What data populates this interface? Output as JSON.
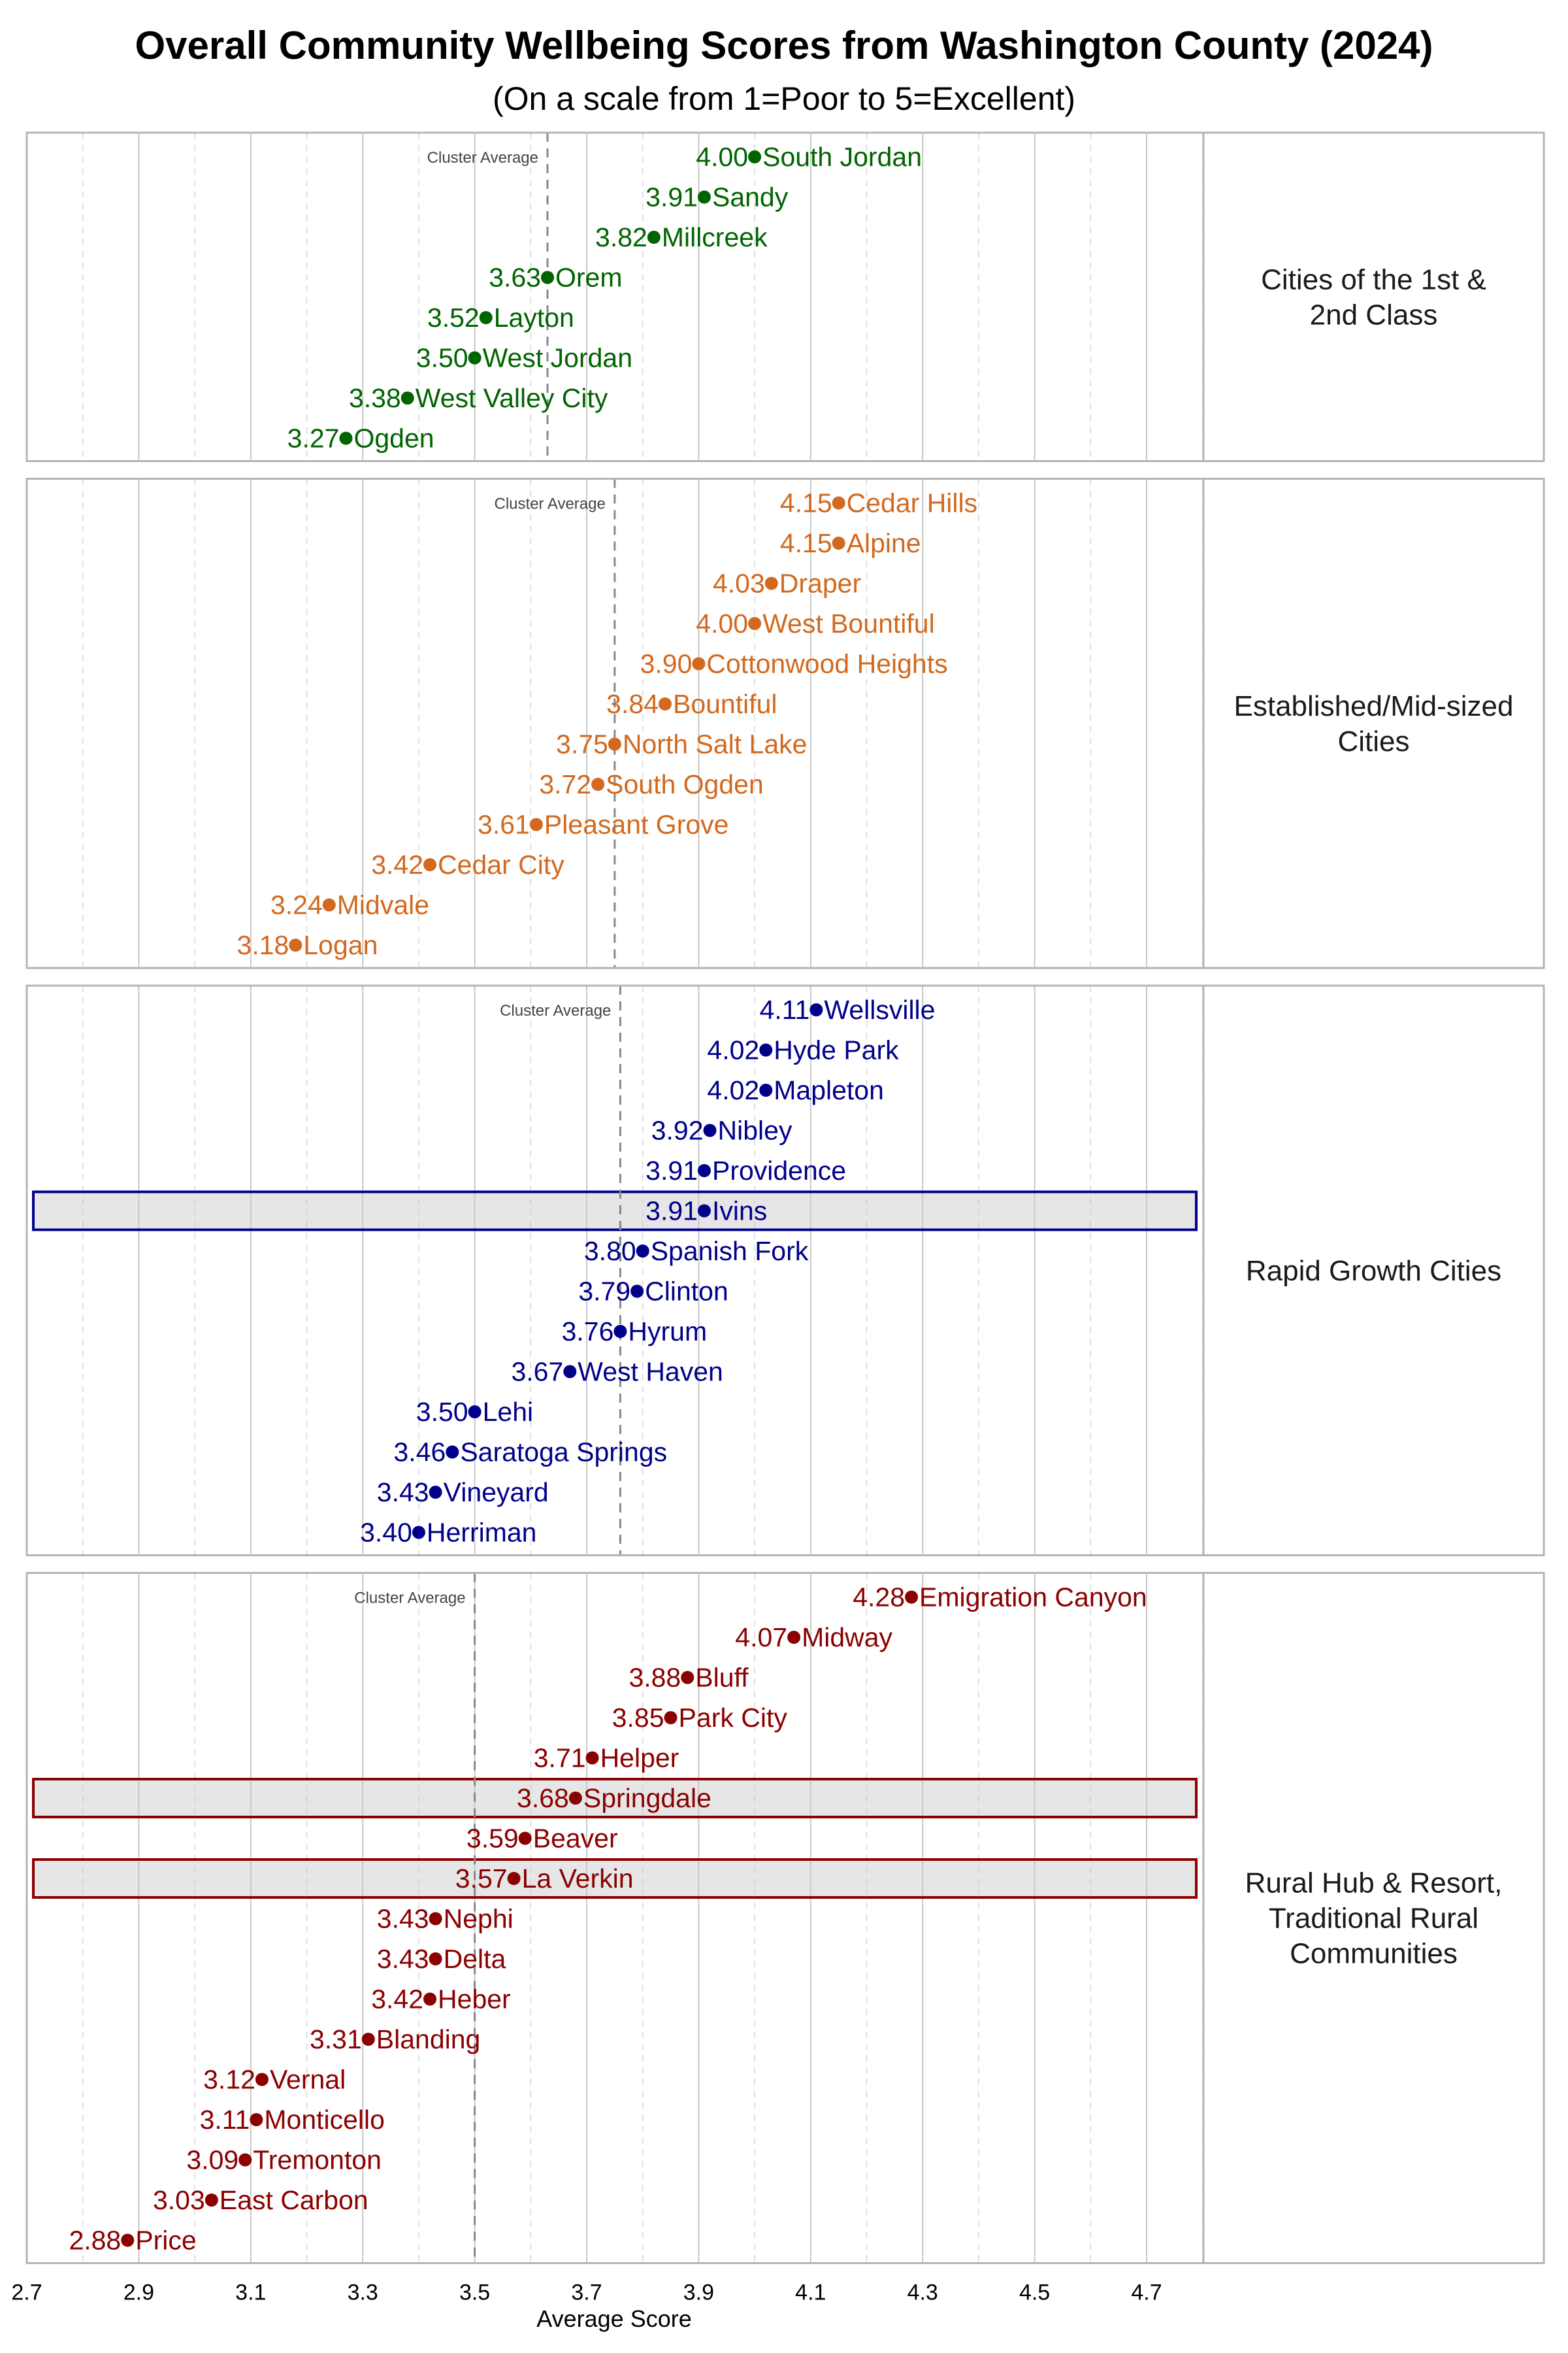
{
  "chart_data": {
    "type": "dot",
    "title": "Overall Community Wellbeing Scores from Washington County (2024)",
    "subtitle": "(On a scale from 1=Poor to 5=Excellent)",
    "xlabel": "Average Score",
    "xlim": [
      2.7,
      4.8
    ],
    "x_ticks": [
      "2.7",
      "2.9",
      "3.1",
      "3.3",
      "3.5",
      "3.7",
      "3.9",
      "4.1",
      "4.3",
      "4.5",
      "4.7"
    ],
    "grid": true,
    "cluster_average_label": "Cluster Average",
    "panels": [
      {
        "label_lines": [
          "Cities of the 1st &",
          "2nd Class"
        ],
        "color": "#006400",
        "cluster_average": 3.63,
        "points": [
          {
            "name": "South Jordan",
            "value": 4.0
          },
          {
            "name": "Sandy",
            "value": 3.91
          },
          {
            "name": "Millcreek",
            "value": 3.82
          },
          {
            "name": "Orem",
            "value": 3.63
          },
          {
            "name": "Layton",
            "value": 3.52
          },
          {
            "name": "West Jordan",
            "value": 3.5
          },
          {
            "name": "West Valley City",
            "value": 3.38
          },
          {
            "name": "Ogden",
            "value": 3.27
          }
        ]
      },
      {
        "label_lines": [
          "Established/Mid-sized",
          "Cities"
        ],
        "color": "#D2691E",
        "cluster_average": 3.75,
        "points": [
          {
            "name": "Cedar Hills",
            "value": 4.15
          },
          {
            "name": "Alpine",
            "value": 4.15
          },
          {
            "name": "Draper",
            "value": 4.03
          },
          {
            "name": "West Bountiful",
            "value": 4.0
          },
          {
            "name": "Cottonwood Heights",
            "value": 3.9
          },
          {
            "name": "Bountiful",
            "value": 3.84
          },
          {
            "name": "North Salt Lake",
            "value": 3.75
          },
          {
            "name": "South Ogden",
            "value": 3.72
          },
          {
            "name": "Pleasant Grove",
            "value": 3.61
          },
          {
            "name": "Cedar City",
            "value": 3.42
          },
          {
            "name": "Midvale",
            "value": 3.24
          },
          {
            "name": "Logan",
            "value": 3.18
          }
        ]
      },
      {
        "label_lines": [
          "Rapid Growth Cities"
        ],
        "color": "#00008B",
        "cluster_average": 3.76,
        "points": [
          {
            "name": "Wellsville",
            "value": 4.11
          },
          {
            "name": "Hyde Park",
            "value": 4.02
          },
          {
            "name": "Mapleton",
            "value": 4.02
          },
          {
            "name": "Nibley",
            "value": 3.92
          },
          {
            "name": "Providence",
            "value": 3.91
          },
          {
            "name": "Ivins",
            "value": 3.91,
            "highlighted": true
          },
          {
            "name": "Spanish Fork",
            "value": 3.8
          },
          {
            "name": "Clinton",
            "value": 3.79
          },
          {
            "name": "Hyrum",
            "value": 3.76
          },
          {
            "name": "West Haven",
            "value": 3.67
          },
          {
            "name": "Lehi",
            "value": 3.5
          },
          {
            "name": "Saratoga Springs",
            "value": 3.46
          },
          {
            "name": "Vineyard",
            "value": 3.43
          },
          {
            "name": "Herriman",
            "value": 3.4
          }
        ]
      },
      {
        "label_lines": [
          "Rural Hub & Resort,",
          "Traditional Rural",
          "Communities"
        ],
        "color": "#8B0000",
        "cluster_average": 3.5,
        "points": [
          {
            "name": "Emigration Canyon",
            "value": 4.28
          },
          {
            "name": "Midway",
            "value": 4.07
          },
          {
            "name": "Bluff",
            "value": 3.88
          },
          {
            "name": "Park City",
            "value": 3.85
          },
          {
            "name": "Helper",
            "value": 3.71
          },
          {
            "name": "Springdale",
            "value": 3.68,
            "highlighted": true
          },
          {
            "name": "Beaver",
            "value": 3.59
          },
          {
            "name": "La Verkin",
            "value": 3.57,
            "highlighted": true
          },
          {
            "name": "Nephi",
            "value": 3.43
          },
          {
            "name": "Delta",
            "value": 3.43
          },
          {
            "name": "Heber",
            "value": 3.42
          },
          {
            "name": "Blanding",
            "value": 3.31
          },
          {
            "name": "Vernal",
            "value": 3.12
          },
          {
            "name": "Monticello",
            "value": 3.11
          },
          {
            "name": "Tremonton",
            "value": 3.09
          },
          {
            "name": "East Carbon",
            "value": 3.03
          },
          {
            "name": "Price",
            "value": 2.88
          }
        ]
      }
    ]
  }
}
